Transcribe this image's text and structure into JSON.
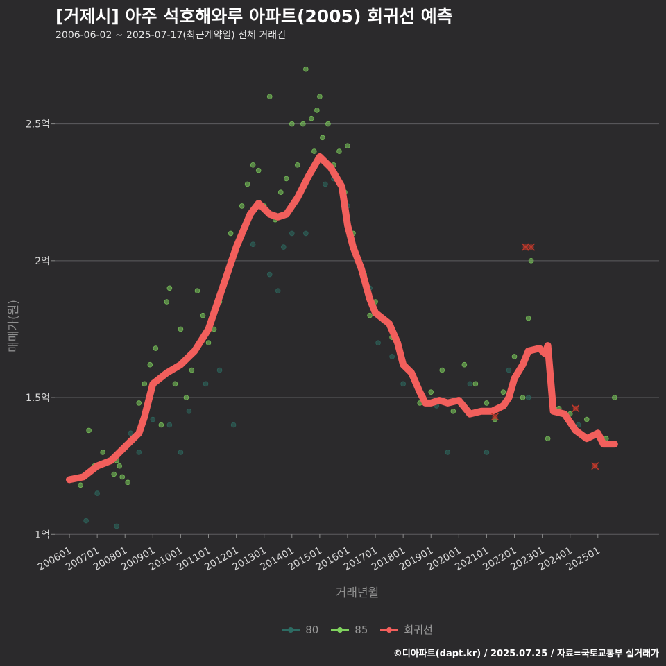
{
  "title": "[거제시] 아주 석호해와루 아파트(2005) 회귀선 예측",
  "subtitle": "2006-06-02 ~ 2025-07-17(최근계약일) 전체 거래건",
  "caption": "©디아파트(dapt.kr) / 2025.07.25 / 자료=국토교통부 실거래가",
  "colors": {
    "s80": "#2d6b63",
    "s85": "#7fd15e",
    "trend": "#f25f5c",
    "outlier": "#c0392b"
  },
  "chart_data": {
    "type": "scatter",
    "title": "[거제시] 아주 석호해와루 아파트(2005) 회귀선 예측",
    "xlabel": "거래년월",
    "ylabel": "매매가(원)",
    "ylim": [
      0.95,
      2.75
    ],
    "xlim": [
      2005.5,
      2027.2
    ],
    "y_ticks": [
      {
        "value": 1.0,
        "label": "1억"
      },
      {
        "value": 1.5,
        "label": "1.5억"
      },
      {
        "value": 2.0,
        "label": "2억"
      },
      {
        "value": 2.5,
        "label": "2.5억"
      }
    ],
    "x_ticks": [
      {
        "value": 2006,
        "label": "200601"
      },
      {
        "value": 2007,
        "label": "200701"
      },
      {
        "value": 2008,
        "label": "200801"
      },
      {
        "value": 2009,
        "label": "200901"
      },
      {
        "value": 2010,
        "label": "201001"
      },
      {
        "value": 2011,
        "label": "201101"
      },
      {
        "value": 2012,
        "label": "201201"
      },
      {
        "value": 2013,
        "label": "201301"
      },
      {
        "value": 2014,
        "label": "201401"
      },
      {
        "value": 2015,
        "label": "201501"
      },
      {
        "value": 2016,
        "label": "201601"
      },
      {
        "value": 2017,
        "label": "201701"
      },
      {
        "value": 2018,
        "label": "201801"
      },
      {
        "value": 2019,
        "label": "201901"
      },
      {
        "value": 2020,
        "label": "202001"
      },
      {
        "value": 2021,
        "label": "202101"
      },
      {
        "value": 2022,
        "label": "202201"
      },
      {
        "value": 2023,
        "label": "202301"
      },
      {
        "value": 2024,
        "label": "202401"
      },
      {
        "value": 2025,
        "label": "202501"
      }
    ],
    "grid": true,
    "legend": "bottom",
    "series": [
      {
        "name": "80",
        "type": "scatter",
        "points": [
          [
            2006.6,
            1.05
          ],
          [
            2007.0,
            1.15
          ],
          [
            2007.7,
            1.03
          ],
          [
            2008.2,
            1.37
          ],
          [
            2008.5,
            1.3
          ],
          [
            2009.0,
            1.42
          ],
          [
            2009.6,
            1.4
          ],
          [
            2010.0,
            1.3
          ],
          [
            2010.3,
            1.45
          ],
          [
            2010.9,
            1.55
          ],
          [
            2011.4,
            1.6
          ],
          [
            2011.9,
            1.4
          ],
          [
            2012.6,
            2.06
          ],
          [
            2013.2,
            1.95
          ],
          [
            2013.5,
            1.89
          ],
          [
            2013.7,
            2.05
          ],
          [
            2014.0,
            2.1
          ],
          [
            2014.5,
            2.1
          ],
          [
            2014.8,
            2.35
          ],
          [
            2015.2,
            2.28
          ],
          [
            2015.5,
            2.3
          ],
          [
            2016.0,
            2.2
          ],
          [
            2016.8,
            1.9
          ],
          [
            2017.1,
            1.7
          ],
          [
            2017.6,
            1.65
          ],
          [
            2018.0,
            1.55
          ],
          [
            2018.5,
            1.55
          ],
          [
            2019.2,
            1.47
          ],
          [
            2019.6,
            1.3
          ],
          [
            2020.4,
            1.55
          ],
          [
            2021.0,
            1.3
          ],
          [
            2021.8,
            1.6
          ],
          [
            2022.5,
            1.5
          ],
          [
            2023.4,
            1.45
          ],
          [
            2024.3,
            1.4
          ],
          [
            2025.1,
            1.35
          ],
          [
            2025.5,
            1.33
          ]
        ]
      },
      {
        "name": "85",
        "type": "scatter",
        "points": [
          [
            2006.1,
            1.2
          ],
          [
            2006.4,
            1.18
          ],
          [
            2006.7,
            1.38
          ],
          [
            2006.9,
            1.25
          ],
          [
            2007.2,
            1.3
          ],
          [
            2007.6,
            1.22
          ],
          [
            2007.7,
            1.27
          ],
          [
            2007.8,
            1.25
          ],
          [
            2007.9,
            1.21
          ],
          [
            2008.1,
            1.19
          ],
          [
            2008.3,
            1.35
          ],
          [
            2008.5,
            1.48
          ],
          [
            2008.7,
            1.55
          ],
          [
            2008.9,
            1.62
          ],
          [
            2009.1,
            1.68
          ],
          [
            2009.3,
            1.4
          ],
          [
            2009.5,
            1.85
          ],
          [
            2009.6,
            1.9
          ],
          [
            2009.8,
            1.55
          ],
          [
            2010.0,
            1.75
          ],
          [
            2010.2,
            1.5
          ],
          [
            2010.4,
            1.6
          ],
          [
            2010.6,
            1.89
          ],
          [
            2010.8,
            1.8
          ],
          [
            2011.0,
            1.7
          ],
          [
            2011.2,
            1.75
          ],
          [
            2011.4,
            1.85
          ],
          [
            2011.6,
            1.92
          ],
          [
            2011.8,
            2.1
          ],
          [
            2012.0,
            2.05
          ],
          [
            2012.2,
            2.2
          ],
          [
            2012.4,
            2.28
          ],
          [
            2012.6,
            2.35
          ],
          [
            2012.8,
            2.33
          ],
          [
            2013.0,
            2.2
          ],
          [
            2013.2,
            2.6
          ],
          [
            2013.4,
            2.15
          ],
          [
            2013.6,
            2.25
          ],
          [
            2013.8,
            2.3
          ],
          [
            2014.0,
            2.5
          ],
          [
            2014.2,
            2.35
          ],
          [
            2014.4,
            2.5
          ],
          [
            2014.5,
            2.7
          ],
          [
            2014.7,
            2.52
          ],
          [
            2014.8,
            2.4
          ],
          [
            2014.9,
            2.55
          ],
          [
            2015.0,
            2.6
          ],
          [
            2015.1,
            2.45
          ],
          [
            2015.3,
            2.5
          ],
          [
            2015.5,
            2.35
          ],
          [
            2015.7,
            2.4
          ],
          [
            2015.9,
            2.25
          ],
          [
            2016.0,
            2.42
          ],
          [
            2016.2,
            2.1
          ],
          [
            2016.4,
            2.0
          ],
          [
            2016.6,
            1.95
          ],
          [
            2016.8,
            1.8
          ],
          [
            2017.0,
            1.85
          ],
          [
            2017.3,
            1.78
          ],
          [
            2017.6,
            1.72
          ],
          [
            2017.8,
            1.7
          ],
          [
            2018.0,
            1.62
          ],
          [
            2018.3,
            1.58
          ],
          [
            2018.6,
            1.48
          ],
          [
            2019.0,
            1.52
          ],
          [
            2019.4,
            1.6
          ],
          [
            2019.8,
            1.45
          ],
          [
            2020.2,
            1.62
          ],
          [
            2020.6,
            1.55
          ],
          [
            2021.0,
            1.48
          ],
          [
            2021.3,
            1.42
          ],
          [
            2021.6,
            1.52
          ],
          [
            2022.0,
            1.65
          ],
          [
            2022.3,
            1.5
          ],
          [
            2022.5,
            1.79
          ],
          [
            2022.6,
            2.0
          ],
          [
            2023.2,
            1.35
          ],
          [
            2023.6,
            1.46
          ],
          [
            2024.0,
            1.44
          ],
          [
            2024.6,
            1.42
          ],
          [
            2025.3,
            1.35
          ],
          [
            2025.6,
            1.5
          ]
        ]
      },
      {
        "name": "회귀선",
        "type": "line",
        "points": [
          [
            2006.0,
            1.2
          ],
          [
            2006.5,
            1.21
          ],
          [
            2007.0,
            1.25
          ],
          [
            2007.5,
            1.27
          ],
          [
            2008.0,
            1.32
          ],
          [
            2008.5,
            1.37
          ],
          [
            2008.7,
            1.43
          ],
          [
            2009.0,
            1.55
          ],
          [
            2009.5,
            1.59
          ],
          [
            2010.0,
            1.62
          ],
          [
            2010.5,
            1.67
          ],
          [
            2011.0,
            1.75
          ],
          [
            2011.5,
            1.9
          ],
          [
            2012.0,
            2.05
          ],
          [
            2012.5,
            2.17
          ],
          [
            2012.8,
            2.21
          ],
          [
            2013.2,
            2.17
          ],
          [
            2013.5,
            2.16
          ],
          [
            2013.8,
            2.17
          ],
          [
            2014.2,
            2.23
          ],
          [
            2014.6,
            2.31
          ],
          [
            2015.0,
            2.38
          ],
          [
            2015.4,
            2.34
          ],
          [
            2015.8,
            2.27
          ],
          [
            2016.0,
            2.13
          ],
          [
            2016.2,
            2.05
          ],
          [
            2016.5,
            1.97
          ],
          [
            2016.8,
            1.86
          ],
          [
            2017.0,
            1.81
          ],
          [
            2017.5,
            1.77
          ],
          [
            2017.8,
            1.7
          ],
          [
            2018.0,
            1.62
          ],
          [
            2018.3,
            1.59
          ],
          [
            2018.6,
            1.52
          ],
          [
            2018.8,
            1.48
          ],
          [
            2019.0,
            1.48
          ],
          [
            2019.3,
            1.49
          ],
          [
            2019.6,
            1.48
          ],
          [
            2020.0,
            1.49
          ],
          [
            2020.4,
            1.44
          ],
          [
            2020.8,
            1.45
          ],
          [
            2021.2,
            1.45
          ],
          [
            2021.6,
            1.47
          ],
          [
            2021.8,
            1.5
          ],
          [
            2022.0,
            1.57
          ],
          [
            2022.3,
            1.62
          ],
          [
            2022.5,
            1.67
          ],
          [
            2022.9,
            1.68
          ],
          [
            2023.1,
            1.66
          ],
          [
            2023.2,
            1.69
          ],
          [
            2023.4,
            1.45
          ],
          [
            2023.8,
            1.44
          ],
          [
            2024.2,
            1.38
          ],
          [
            2024.6,
            1.35
          ],
          [
            2025.0,
            1.37
          ],
          [
            2025.2,
            1.33
          ],
          [
            2025.6,
            1.33
          ]
        ]
      }
    ],
    "outliers": [
      [
        2022.4,
        2.05
      ],
      [
        2022.6,
        2.05
      ],
      [
        2021.3,
        1.43
      ],
      [
        2024.2,
        1.46
      ],
      [
        2024.9,
        1.25
      ]
    ]
  }
}
